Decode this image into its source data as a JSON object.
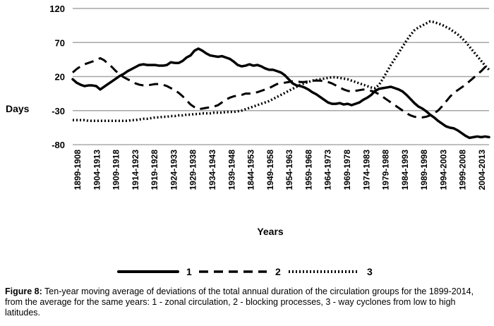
{
  "chart_data": {
    "type": "line",
    "xlabel": "Years",
    "ylabel": "Days",
    "ylim": [
      -80,
      120
    ],
    "yticks": [
      120,
      70,
      20,
      -30,
      -80
    ],
    "grid": true,
    "legend_placement": "bottom",
    "categories": [
      "1899-1908",
      "1900-1909",
      "1901-1910",
      "1902-1911",
      "1903-1912",
      "1904-1913",
      "1905-1914",
      "1906-1915",
      "1907-1916",
      "1908-1917",
      "1909-1918",
      "1910-1919",
      "1911-1920",
      "1912-1921",
      "1913-1922",
      "1914-1923",
      "1915-1924",
      "1916-1925",
      "1917-1926",
      "1918-1927",
      "1919-1928",
      "1920-1929",
      "1921-1930",
      "1922-1931",
      "1923-1932",
      "1924-1933",
      "1925-1934",
      "1926-1935",
      "1927-1936",
      "1928-1937",
      "1929-1938",
      "1930-1939",
      "1931-1940",
      "1932-1941",
      "1933-1942",
      "1934-1943",
      "1935-1944",
      "1936-1945",
      "1937-1946",
      "1938-1947",
      "1939-1948",
      "1940-1949",
      "1941-1950",
      "1942-1951",
      "1943-1952",
      "1844-1953",
      "1945-1954",
      "1946-1955",
      "1947-1956",
      "1948-1957",
      "1949-1958",
      "1950-1959",
      "1951-1960",
      "1952-1961",
      "1953-1962",
      "1954-1963",
      "1955-1964",
      "1956-1965",
      "1957-1966",
      "1958-1967",
      "1959-1968",
      "1960-1969",
      "1961-1970",
      "1962-1971",
      "1963-1972",
      "1964-1973",
      "1965-1974",
      "1966-1975",
      "1967-1976",
      "1968-1977",
      "1969-1978",
      "1970-1979",
      "1971-1980",
      "1972-1981",
      "1973-1982",
      "1974-1983",
      "1975-1984",
      "1976-1985",
      "1977-1986",
      "1978-1987",
      "1979-1988",
      "1980-1989",
      "1981-1990",
      "1982-1991",
      "1983-1992",
      "1984-1993",
      "1985-1994",
      "1986-1995",
      "1987-1996",
      "1988-1997",
      "1989-1998",
      "1990-1999",
      "1991-2000",
      "1992-2001",
      "1993-2002",
      "1994-2003",
      "1995-2004",
      "1996-2005",
      "1997-2006",
      "1998-2007",
      "1999-2008",
      "2000-2009",
      "2001-2010",
      "2002-2011",
      "2003-2012",
      "2004-2013",
      "2005-2014"
    ],
    "tick_labels": [
      "1899-1908",
      "1904-1913",
      "1909-1918",
      "1914-1923",
      "1919-1928",
      "1924-1933",
      "1929-1938",
      "1934-1943",
      "1939-1948",
      "1844-1953",
      "1949-1958",
      "1954-1963",
      "1959-1968",
      "1964-1973",
      "1969-1978",
      "1974-1983",
      "1979-1988",
      "1984-1993",
      "1989-1998",
      "1994-2003",
      "1999-2008",
      "2004-2013"
    ],
    "series": [
      {
        "name": "1",
        "style": "solid",
        "values": [
          16,
          11,
          8,
          6,
          7,
          7,
          6,
          1,
          5,
          9,
          13,
          17,
          21,
          24,
          28,
          31,
          34,
          37,
          38,
          37,
          37,
          37,
          36,
          36,
          37,
          41,
          40,
          40,
          43,
          48,
          51,
          58,
          61,
          58,
          54,
          51,
          50,
          49,
          50,
          48,
          46,
          42,
          37,
          35,
          36,
          38,
          36,
          37,
          35,
          32,
          30,
          30,
          28,
          26,
          22,
          16,
          10,
          7,
          6,
          4,
          1,
          -3,
          -6,
          -10,
          -14,
          -18,
          -20,
          -20,
          -19,
          -21,
          -20,
          -22,
          -20,
          -18,
          -14,
          -11,
          -7,
          -1,
          2,
          3,
          4,
          5,
          3,
          1,
          -2,
          -7,
          -13,
          -19,
          -24,
          -27,
          -31,
          -36,
          -40,
          -45,
          -49,
          -53,
          -55,
          -56,
          -59,
          -63,
          -67,
          -70,
          -69,
          -68,
          -69,
          -68,
          -69
        ]
      },
      {
        "name": "2",
        "style": "dashed",
        "values": [
          26,
          31,
          35,
          38,
          40,
          42,
          44,
          47,
          44,
          39,
          34,
          28,
          23,
          19,
          16,
          13,
          10,
          8,
          7,
          7,
          8,
          9,
          9,
          8,
          6,
          3,
          0,
          -4,
          -9,
          -15,
          -21,
          -25,
          -28,
          -27,
          -26,
          -25,
          -24,
          -22,
          -18,
          -14,
          -11,
          -9,
          -8,
          -7,
          -5,
          -5,
          -4,
          -3,
          -1,
          1,
          3,
          6,
          9,
          10,
          11,
          12,
          13,
          13,
          12,
          12,
          13,
          14,
          14,
          14,
          13,
          12,
          10,
          7,
          4,
          1,
          -1,
          -2,
          -1,
          0,
          1,
          0,
          -1,
          -3,
          -6,
          -10,
          -14,
          -18,
          -22,
          -26,
          -30,
          -34,
          -37,
          -39,
          -40,
          -40,
          -39,
          -37,
          -34,
          -30,
          -24,
          -17,
          -10,
          -4,
          0,
          4,
          8,
          13,
          18,
          23,
          28,
          34,
          38
        ]
      },
      {
        "name": "3",
        "style": "dotted",
        "values": [
          -44,
          -44,
          -44,
          -44,
          -45,
          -45,
          -45,
          -45,
          -45,
          -45,
          -45,
          -45,
          -45,
          -45,
          -45,
          -44,
          -44,
          -43,
          -42,
          -42,
          -41,
          -40,
          -40,
          -39,
          -39,
          -38,
          -38,
          -37,
          -37,
          -36,
          -36,
          -35,
          -35,
          -34,
          -34,
          -34,
          -33,
          -33,
          -33,
          -32,
          -32,
          -32,
          -31,
          -30,
          -28,
          -26,
          -24,
          -22,
          -20,
          -18,
          -16,
          -13,
          -10,
          -7,
          -4,
          -1,
          2,
          5,
          8,
          10,
          12,
          14,
          15,
          16,
          17,
          18,
          19,
          19,
          18,
          17,
          16,
          14,
          12,
          10,
          8,
          6,
          4,
          3,
          8,
          17,
          27,
          37,
          46,
          55,
          64,
          73,
          81,
          88,
          92,
          95,
          98,
          101,
          100,
          98,
          96,
          93,
          90,
          86,
          82,
          77,
          71,
          64,
          57,
          50,
          43,
          36,
          30
        ]
      }
    ]
  },
  "figure_label": "Figure 8:",
  "caption_text": "Ten-year moving average of deviations of the total annual duration of the circulation groups for the 1899-2014, from the average for the same years: 1 - zonal circulation, 2 - blocking processes, 3 - way cyclones from low to high latitudes."
}
